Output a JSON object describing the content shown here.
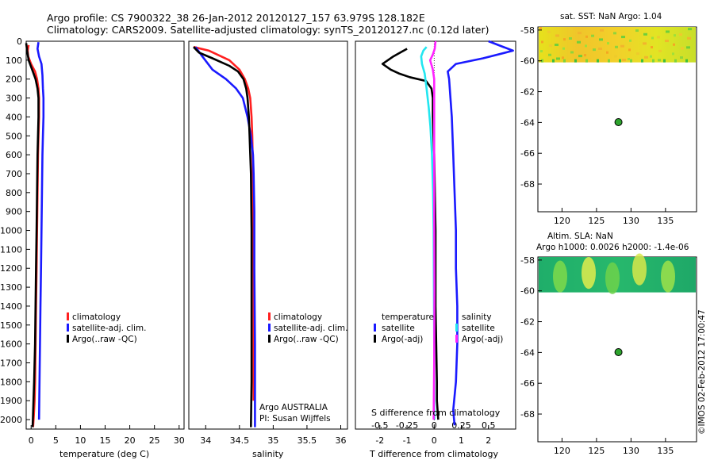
{
  "figure": {
    "title_line1": "Argo profile: CS 7900322_38 26-Jan-2012 20120127_157 63.979S 128.182E",
    "title_line2": "Climatology: CARS2009. Satellite-adjusted climatology: synTS_20120127.nc (0.12d later)",
    "side_stamp": "©IMOS 02-Feb-2012 17:00:47"
  },
  "colors": {
    "climatology": "#ff2020",
    "satellite": "#1a1aff",
    "argo": "#000000",
    "sat_salinity": "#22e6f0",
    "argo_salinity": "#ff22ff",
    "point_fill": "#2ea42e"
  },
  "chart_data": [
    {
      "type": "line",
      "id": "temperature",
      "xlabel": "temperature (deg C)",
      "xlim": [
        -1,
        31
      ],
      "ylim": [
        0,
        2050
      ],
      "xticks": [
        "0",
        "5",
        "10",
        "15",
        "20",
        "25",
        "30"
      ],
      "xtick_values": [
        0,
        5,
        10,
        15,
        20,
        25,
        30
      ],
      "yticks": [
        "0",
        "100",
        "200",
        "300",
        "400",
        "500",
        "600",
        "700",
        "800",
        "900",
        "1000",
        "1100",
        "1200",
        "1300",
        "1400",
        "1500",
        "1600",
        "1700",
        "1800",
        "1900",
        "2000"
      ],
      "ytick_values": [
        0,
        100,
        200,
        300,
        400,
        500,
        600,
        700,
        800,
        900,
        1000,
        1100,
        1200,
        1300,
        1400,
        1500,
        1600,
        1700,
        1800,
        1900,
        2000
      ],
      "legend": [
        "climatology",
        "satellite-adj. clim.",
        "Argo(..raw -QC)"
      ],
      "series": [
        {
          "name": "climatology",
          "color_key": "climatology",
          "x": [
            -0.5,
            -0.7,
            -0.6,
            0.0,
            0.8,
            1.2,
            1.5,
            1.6,
            1.6,
            1.5,
            1.4,
            1.3,
            1.2,
            1.1,
            1.0,
            0.9,
            0.8,
            0.7,
            0.6,
            0.5,
            0.4
          ],
          "y": [
            20,
            50,
            80,
            120,
            160,
            200,
            250,
            300,
            400,
            500,
            600,
            800,
            1000,
            1200,
            1400,
            1600,
            1800,
            1900,
            1950,
            2000,
            2040
          ]
        },
        {
          "name": "satellite-adj. clim.",
          "color_key": "satellite",
          "x": [
            1.5,
            1.3,
            1.6,
            2.1,
            2.3,
            2.4,
            2.5,
            2.5,
            2.4,
            2.3,
            2.2,
            2.1,
            2.0,
            1.9,
            1.8,
            1.7,
            1.6
          ],
          "y": [
            5,
            40,
            80,
            120,
            180,
            250,
            300,
            400,
            500,
            600,
            800,
            1000,
            1200,
            1400,
            1600,
            1800,
            2000
          ]
        },
        {
          "name": "Argo(..raw -QC)",
          "color_key": "argo",
          "x": [
            -1.0,
            -0.8,
            -0.5,
            0.2,
            0.9,
            1.3,
            1.5,
            1.5,
            1.4,
            1.3,
            1.2,
            1.1,
            1.0,
            0.9,
            0.8,
            0.6,
            0.3
          ],
          "y": [
            10,
            50,
            100,
            150,
            200,
            250,
            300,
            400,
            500,
            600,
            800,
            1000,
            1200,
            1400,
            1600,
            1800,
            2040
          ]
        }
      ]
    },
    {
      "type": "line",
      "id": "salinity",
      "xlabel": "salinity",
      "xlim": [
        33.75,
        36.1
      ],
      "ylim": [
        0,
        2050
      ],
      "xticks": [
        "34",
        "34.5",
        "35",
        "35.5",
        "36"
      ],
      "xtick_values": [
        34,
        34.5,
        35,
        35.5,
        36
      ],
      "legend": [
        "climatology",
        "satellite-adj. clim.",
        "Argo(..raw -QC)"
      ],
      "annotation_line1": "Argo AUSTRALIA",
      "annotation_line2": "PI: Susan Wijffels",
      "series": [
        {
          "name": "climatology",
          "color_key": "climatology",
          "x": [
            33.82,
            34.05,
            34.35,
            34.5,
            34.58,
            34.63,
            34.66,
            34.68,
            34.69,
            34.7,
            34.7,
            34.71,
            34.71,
            34.71,
            34.71
          ],
          "y": [
            30,
            50,
            100,
            150,
            200,
            250,
            300,
            400,
            500,
            700,
            1000,
            1300,
            1600,
            1800,
            1900
          ]
        },
        {
          "name": "satellite-adj. clim.",
          "color_key": "satellite",
          "x": [
            33.85,
            33.95,
            34.1,
            34.3,
            34.45,
            34.55,
            34.62,
            34.67,
            34.7,
            34.71,
            34.72,
            34.72,
            34.73,
            34.73
          ],
          "y": [
            30,
            80,
            150,
            200,
            250,
            300,
            400,
            500,
            600,
            700,
            900,
            1200,
            1600,
            2040
          ]
        },
        {
          "name": "Argo(..raw -QC)",
          "color_key": "argo",
          "x": [
            33.82,
            33.9,
            34.1,
            34.35,
            34.48,
            34.56,
            34.6,
            34.62,
            34.64,
            34.65,
            34.67,
            34.68,
            34.68,
            34.68,
            34.67
          ],
          "y": [
            30,
            60,
            90,
            130,
            160,
            200,
            250,
            300,
            400,
            500,
            700,
            1000,
            1400,
            1800,
            2040
          ]
        }
      ]
    },
    {
      "type": "line",
      "id": "difference",
      "xlabel": "T difference from climatology",
      "xlabel_top": "S difference from climatology",
      "xlim": [
        -2.9,
        3.0
      ],
      "ylim": [
        0,
        2050
      ],
      "xticks": [
        "-2",
        "-1",
        "0",
        "1",
        "2"
      ],
      "xtick_values": [
        -2,
        -1,
        0,
        1,
        2
      ],
      "sticks": [
        "-0.5",
        "-0.25",
        "0",
        "0.25",
        "0.5"
      ],
      "stick_values": [
        -0.5,
        -0.25,
        0,
        0.25,
        0.5
      ],
      "s_scale": 4,
      "legend_left_header": "temperature",
      "legend_left": [
        "satellite",
        "Argo(-adj)"
      ],
      "legend_right_header": "salinity",
      "legend_right": [
        "satellite",
        "Argo(-adj)"
      ],
      "series": [
        {
          "name": "T satellite",
          "color_key": "satellite",
          "x": [
            2.0,
            2.9,
            1.8,
            0.8,
            0.5,
            0.55,
            0.6,
            0.65,
            0.7,
            0.75,
            0.8,
            0.8,
            0.85,
            0.85,
            0.8,
            0.7,
            0.75
          ],
          "y": [
            0,
            50,
            90,
            120,
            160,
            200,
            300,
            400,
            600,
            800,
            1000,
            1200,
            1400,
            1600,
            1800,
            1950,
            2030
          ]
        },
        {
          "name": "T Argo(-adj)",
          "color_key": "argo",
          "x": [
            -1.0,
            -1.5,
            -1.9,
            -1.6,
            -1.3,
            -0.9,
            -0.3,
            -0.1,
            -0.05,
            -0.05,
            0.0,
            0.05,
            0.05,
            0.1,
            0.1,
            0.15
          ],
          "y": [
            40,
            80,
            120,
            150,
            170,
            190,
            210,
            250,
            300,
            400,
            600,
            1000,
            1400,
            1800,
            1900,
            2000
          ]
        },
        {
          "name": "S satellite",
          "color_key": "sat_salinity",
          "x": [
            -0.28,
            -0.4,
            -0.48,
            -0.45,
            -0.35,
            -0.28,
            -0.2,
            -0.14,
            -0.08,
            -0.04,
            -0.02,
            -0.01,
            0.0,
            0.0,
            0.01
          ],
          "y": [
            30,
            50,
            80,
            120,
            170,
            250,
            350,
            450,
            600,
            800,
            1000,
            1300,
            1600,
            1900,
            2000
          ]
        },
        {
          "name": "S Argo(-adj)",
          "color_key": "argo_salinity",
          "x": [
            0.05,
            0.02,
            -0.05,
            -0.15,
            -0.05,
            0.0,
            0.0,
            0.0,
            0.0,
            0.01,
            0.0,
            -0.02
          ],
          "y": [
            0,
            40,
            70,
            100,
            150,
            200,
            300,
            500,
            900,
            1300,
            1700,
            2000
          ]
        }
      ]
    },
    {
      "type": "heatmap",
      "id": "sst_map",
      "title": "sat. SST: NaN Argo: 1.04",
      "xlim": [
        116.5,
        139.5
      ],
      "ylim": [
        -69.8,
        -57.8
      ],
      "xticks": [
        "120",
        "125",
        "130",
        "135"
      ],
      "xtick_values": [
        120,
        125,
        130,
        135
      ],
      "yticks": [
        "-58",
        "-60",
        "-62",
        "-64",
        "-66",
        "-68"
      ],
      "ytick_values": [
        -58,
        -60,
        -62,
        -64,
        -66,
        -68
      ],
      "field_lat_range": [
        -60.1,
        -57.8
      ],
      "point": {
        "lon": 128.182,
        "lat": -63.979
      }
    },
    {
      "type": "heatmap",
      "id": "sla_map",
      "title": "Altim. SLA: NaN",
      "subtitle": "Argo h1000: 0.0026 h2000: -1.4e-06",
      "xlim": [
        116.5,
        139.5
      ],
      "ylim": [
        -69.8,
        -57.8
      ],
      "xticks": [
        "120",
        "125",
        "130",
        "135"
      ],
      "xtick_values": [
        120,
        125,
        130,
        135
      ],
      "yticks": [
        "-58",
        "-60",
        "-62",
        "-64",
        "-66",
        "-68"
      ],
      "ytick_values": [
        -58,
        -60,
        -62,
        -64,
        -66,
        -68
      ],
      "field_lat_range": [
        -60.1,
        -57.8
      ],
      "point": {
        "lon": 128.182,
        "lat": -63.979
      }
    }
  ]
}
